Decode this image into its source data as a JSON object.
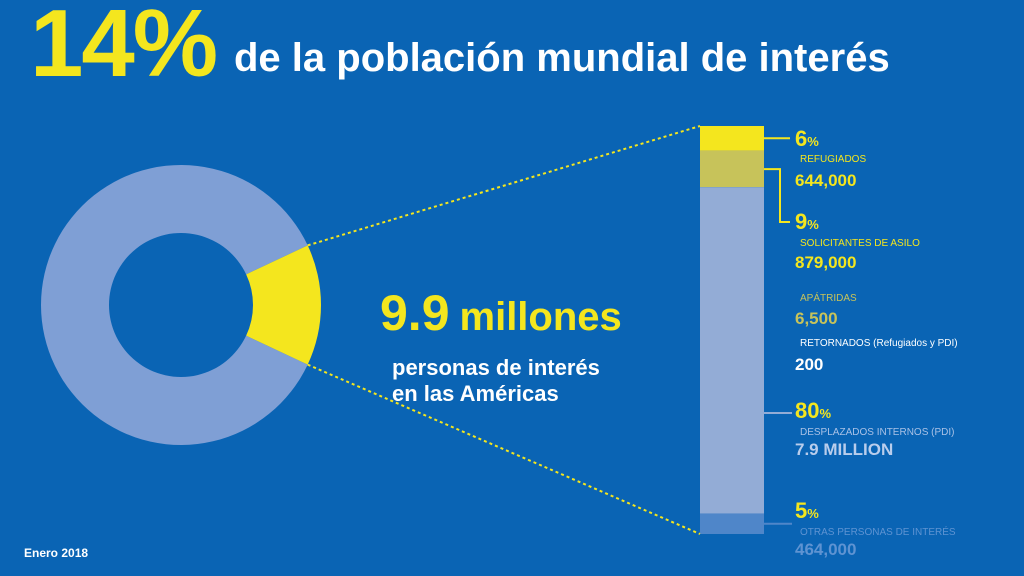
{
  "header": {
    "percent": "14%",
    "title": "de la población mundial de interés"
  },
  "total": {
    "number": "9.9",
    "unit": "millones",
    "line1": "personas de interés",
    "line2": "en las Américas"
  },
  "footer": {
    "date": "Enero 2018"
  },
  "colors": {
    "background": "#0a64b4",
    "yellow": "#f4e61e",
    "olive": "#c7c35a",
    "light_blue": "#93acd6",
    "mid_blue": "#4f86c9"
  },
  "chart_data": [
    {
      "type": "pie",
      "style": "donut",
      "slices": [
        {
          "label": "Américas",
          "value": 14,
          "color": "#f4e61e"
        },
        {
          "label": "",
          "value": 86,
          "color": "#7f9fd5"
        }
      ]
    },
    {
      "type": "bar",
      "stacked": true,
      "segments": [
        {
          "label": "REFUGIADOS",
          "percent": "6",
          "value": "644,000",
          "share": 6,
          "color": "#f4e61e",
          "label_color": "#f4e61e"
        },
        {
          "label": "SOLICITANTES DE ASILO",
          "percent": "9",
          "value": "879,000",
          "share": 9,
          "color": "#c7c35a",
          "label_color": "#f4e61e"
        },
        {
          "label": "APÁTRIDAS",
          "percent": "",
          "value": "6,500",
          "share": 0.07,
          "color": "#93acd6",
          "label_color": "#c7c35a"
        },
        {
          "label": "RETORNADOS (Refugiados y PDI)",
          "percent": "",
          "value": "200",
          "share": 0.002,
          "color": "#93acd6",
          "label_color": "#ffffff"
        },
        {
          "label": "DESPLAZADOS INTERNOS (PDI)",
          "percent": "80",
          "value": "7.9 MILLION",
          "share": 80,
          "color": "#93acd6",
          "label_color": "#a9c1e6"
        },
        {
          "label": "OTRAS PERSONAS DE INTERÉS",
          "percent": "5",
          "value": "464,000",
          "share": 5,
          "color": "#4f86c9",
          "label_color": "#5e93d2"
        }
      ]
    }
  ]
}
